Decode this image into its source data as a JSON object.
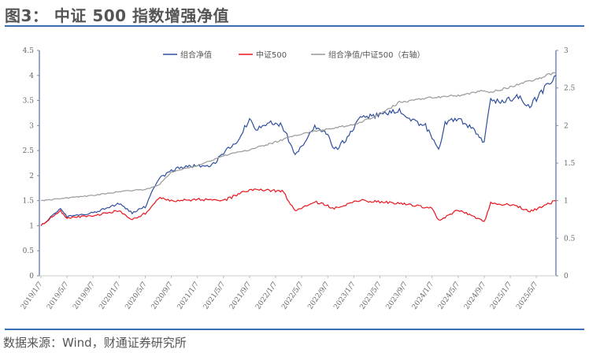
{
  "title": "图3：  中证 500 指数增强净值",
  "source": "数据来源：Wind，财通证券研究所",
  "chart_data": {
    "type": "line",
    "title": "中证 500 指数增强净值",
    "x_unit": "months since 2019/1",
    "x_tick_labels": [
      "2019/1/7",
      "2019/5/7",
      "2019/9/7",
      "2020/1/7",
      "2020/5/7",
      "2020/9/7",
      "2021/1/7",
      "2021/5/7",
      "2021/9/7",
      "2022/1/7",
      "2022/5/7",
      "2022/9/7",
      "2023/1/7",
      "2023/5/7",
      "2023/9/7",
      "2024/1/7",
      "2024/5/7",
      "2024/9/7",
      "2025/1/7",
      "2025/5/7"
    ],
    "xlim": [
      0,
      79
    ],
    "y_left": {
      "ylim": [
        0,
        4.5
      ],
      "ticks": [
        "0",
        "0.5",
        "1",
        "1.5",
        "2",
        "2.5",
        "3",
        "3.5",
        "4",
        "4.5"
      ]
    },
    "y_right": {
      "ylim": [
        0,
        3
      ],
      "ticks": [
        "0",
        "0.5",
        "1",
        "1.5",
        "2",
        "2.5",
        "3"
      ]
    },
    "legend_position": "top-center",
    "series": [
      {
        "name": "组合净值",
        "color": "#2f4f9e",
        "axis": "left",
        "x": [
          0,
          3,
          4,
          8,
          12,
          14,
          16,
          18,
          20,
          24,
          26,
          28,
          30,
          32,
          33,
          35,
          37,
          39,
          40,
          42,
          44,
          45,
          47,
          49,
          52,
          55,
          57,
          59,
          61,
          62,
          64,
          66,
          68,
          69,
          71,
          73,
          75,
          77,
          79
        ],
        "y": [
          1.0,
          1.34,
          1.18,
          1.26,
          1.45,
          1.26,
          1.38,
          1.92,
          2.12,
          2.2,
          2.17,
          2.44,
          2.67,
          3.14,
          2.9,
          3.07,
          3.0,
          2.44,
          2.6,
          3.0,
          2.8,
          2.5,
          2.75,
          3.14,
          3.22,
          3.3,
          3.1,
          3.0,
          2.5,
          3.05,
          3.14,
          2.95,
          2.67,
          3.54,
          3.45,
          3.6,
          3.38,
          3.7,
          4.0
        ]
      },
      {
        "name": "中证500",
        "color": "#e8141c",
        "axis": "left",
        "x": [
          0,
          3,
          4,
          8,
          12,
          14,
          16,
          18,
          20,
          24,
          28,
          32,
          35,
          37,
          39,
          42,
          45,
          49,
          55,
          60,
          61,
          64,
          68,
          69,
          73,
          75,
          79
        ],
        "y": [
          1.0,
          1.3,
          1.15,
          1.2,
          1.3,
          1.12,
          1.25,
          1.55,
          1.5,
          1.52,
          1.5,
          1.72,
          1.7,
          1.7,
          1.3,
          1.48,
          1.35,
          1.5,
          1.45,
          1.35,
          1.1,
          1.32,
          1.08,
          1.45,
          1.4,
          1.28,
          1.5
        ]
      },
      {
        "name": "组合净值/中证500（右轴）",
        "color": "#999999",
        "axis": "right",
        "x": [
          0,
          8,
          12,
          16,
          18,
          20,
          24,
          28,
          32,
          36,
          39,
          42,
          45,
          48,
          52,
          55,
          59,
          61,
          65,
          68,
          69,
          73,
          76,
          79
        ],
        "y": [
          1.0,
          1.07,
          1.12,
          1.15,
          1.2,
          1.38,
          1.47,
          1.6,
          1.68,
          1.78,
          1.87,
          1.92,
          1.97,
          2.01,
          2.15,
          2.31,
          2.36,
          2.38,
          2.41,
          2.47,
          2.44,
          2.54,
          2.62,
          2.71
        ]
      }
    ]
  }
}
